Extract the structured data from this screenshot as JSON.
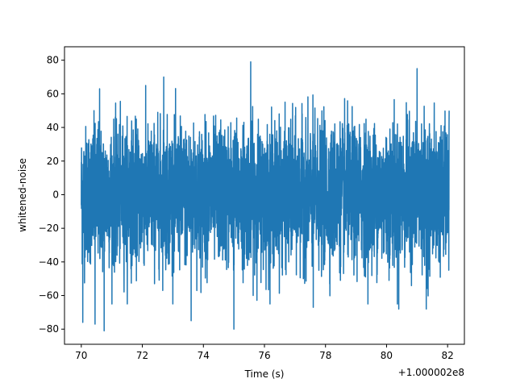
{
  "chart_data": {
    "type": "line",
    "title": "",
    "xlabel": "Time (s)",
    "ylabel": "whitened-noise",
    "x_offset_label": "+1.000002e8",
    "xlim": [
      69.45,
      82.55
    ],
    "ylim": [
      -89.0,
      88.0
    ],
    "x_ticks": [
      70,
      72,
      74,
      76,
      78,
      80,
      82
    ],
    "x_tick_labels": [
      "70",
      "72",
      "74",
      "76",
      "78",
      "80",
      "82"
    ],
    "y_ticks": [
      -80,
      -60,
      -40,
      -20,
      0,
      20,
      40,
      60,
      80
    ],
    "y_tick_labels": [
      "−80",
      "−60",
      "−40",
      "−20",
      "0",
      "20",
      "40",
      "60",
      "80"
    ],
    "series": [
      {
        "color": "#1f77b4",
        "x_range": [
          70.0,
          82.05
        ],
        "typical_range": [
          -40,
          40
        ],
        "max": 79,
        "min": -81
      }
    ],
    "notable_peaks": [
      {
        "x": 70.05,
        "y": 73
      },
      {
        "x": 70.6,
        "y": 63
      },
      {
        "x": 72.7,
        "y": 70
      },
      {
        "x": 75.55,
        "y": 79
      },
      {
        "x": 81.0,
        "y": 75
      },
      {
        "x": 82.05,
        "y": 50
      }
    ],
    "notable_troughs": [
      {
        "x": 70.05,
        "y": -76
      },
      {
        "x": 70.45,
        "y": -77
      },
      {
        "x": 70.75,
        "y": -81
      },
      {
        "x": 73.6,
        "y": -75
      },
      {
        "x": 75.0,
        "y": -80
      },
      {
        "x": 77.6,
        "y": -67
      },
      {
        "x": 80.4,
        "y": -68
      },
      {
        "x": 81.3,
        "y": -68
      }
    ],
    "grid": false,
    "legend": false
  }
}
